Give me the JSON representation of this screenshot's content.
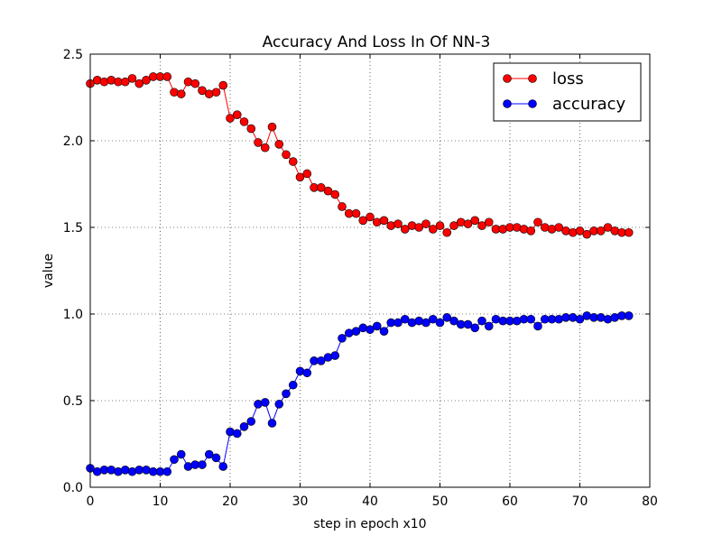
{
  "colors": {
    "loss": "#ff0000",
    "accuracy": "#0000ff",
    "axes": "#000000",
    "background": "#ffffff",
    "grid": "#000000"
  },
  "chart_data": {
    "type": "line",
    "title": "Accuracy And Loss In Of NN-3",
    "xlabel": "step in epoch x10",
    "ylabel": "value",
    "xlim": [
      0,
      80
    ],
    "ylim": [
      0.0,
      2.5
    ],
    "x_ticks": [
      "0",
      "10",
      "20",
      "30",
      "40",
      "50",
      "60",
      "70",
      "80"
    ],
    "y_ticks": [
      "0.0",
      "0.5",
      "1.0",
      "1.5",
      "2.0",
      "2.5"
    ],
    "x_tick_values": [
      0,
      10,
      20,
      30,
      40,
      50,
      60,
      70,
      80
    ],
    "y_tick_values": [
      0.0,
      0.5,
      1.0,
      1.5,
      2.0,
      2.5
    ],
    "grid": true,
    "legend": "top-right",
    "marker": "circle",
    "x": [
      0,
      1,
      2,
      3,
      4,
      5,
      6,
      7,
      8,
      9,
      10,
      11,
      12,
      13,
      14,
      15,
      16,
      17,
      18,
      19,
      20,
      21,
      22,
      23,
      24,
      25,
      26,
      27,
      28,
      29,
      30,
      31,
      32,
      33,
      34,
      35,
      36,
      37,
      38,
      39,
      40,
      41,
      42,
      43,
      44,
      45,
      46,
      47,
      48,
      49,
      50,
      51,
      52,
      53,
      54,
      55,
      56,
      57,
      58,
      59,
      60,
      61,
      62,
      63,
      64,
      65,
      66,
      67,
      68,
      69,
      70,
      71,
      72,
      73,
      74,
      75,
      76,
      77
    ],
    "series": [
      {
        "name": "loss",
        "color": "#ff0000",
        "values": [
          2.33,
          2.35,
          2.34,
          2.35,
          2.34,
          2.34,
          2.36,
          2.33,
          2.35,
          2.37,
          2.37,
          2.37,
          2.28,
          2.27,
          2.34,
          2.33,
          2.29,
          2.27,
          2.28,
          2.32,
          2.13,
          2.15,
          2.11,
          2.07,
          1.99,
          1.96,
          2.08,
          1.98,
          1.92,
          1.88,
          1.79,
          1.81,
          1.73,
          1.73,
          1.71,
          1.69,
          1.62,
          1.58,
          1.58,
          1.54,
          1.56,
          1.53,
          1.54,
          1.51,
          1.52,
          1.49,
          1.51,
          1.5,
          1.52,
          1.49,
          1.51,
          1.47,
          1.51,
          1.53,
          1.52,
          1.54,
          1.51,
          1.53,
          1.49,
          1.49,
          1.5,
          1.5,
          1.49,
          1.48,
          1.53,
          1.5,
          1.49,
          1.5,
          1.48,
          1.47,
          1.48,
          1.46,
          1.48,
          1.48,
          1.5,
          1.48,
          1.47,
          1.47
        ]
      },
      {
        "name": "accuracy",
        "color": "#0000ff",
        "values": [
          0.11,
          0.09,
          0.1,
          0.1,
          0.09,
          0.1,
          0.09,
          0.1,
          0.1,
          0.09,
          0.09,
          0.09,
          0.16,
          0.19,
          0.12,
          0.13,
          0.13,
          0.19,
          0.17,
          0.12,
          0.32,
          0.31,
          0.35,
          0.38,
          0.48,
          0.49,
          0.37,
          0.48,
          0.54,
          0.59,
          0.67,
          0.66,
          0.73,
          0.73,
          0.75,
          0.76,
          0.86,
          0.89,
          0.9,
          0.92,
          0.91,
          0.93,
          0.9,
          0.95,
          0.95,
          0.97,
          0.95,
          0.96,
          0.95,
          0.97,
          0.95,
          0.98,
          0.96,
          0.94,
          0.94,
          0.92,
          0.96,
          0.93,
          0.97,
          0.96,
          0.96,
          0.96,
          0.97,
          0.97,
          0.93,
          0.97,
          0.97,
          0.97,
          0.98,
          0.98,
          0.97,
          0.99,
          0.98,
          0.98,
          0.97,
          0.98,
          0.99,
          0.99
        ]
      }
    ]
  }
}
